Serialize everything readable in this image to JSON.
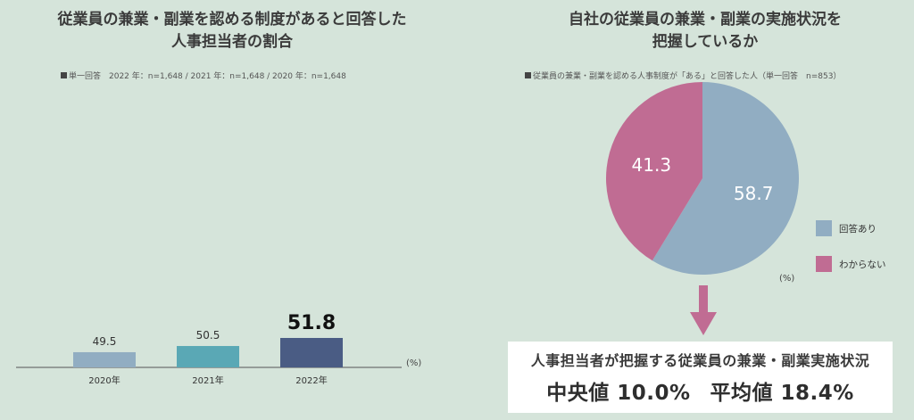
{
  "left": {
    "title_line1": "従業員の兼業・副業を認める制度があると回答した",
    "title_line2": "人事担当者の割合",
    "note": "単一回答　2022 年：n=1,648 / 2021 年：n=1,648 / 2020 年：n=1,648",
    "unit": "(%)"
  },
  "right": {
    "title_line1": "自社の従業員の兼業・副業の実施状況を",
    "title_line2": "把握しているか",
    "note": "従業員の兼業・副業を認める人事制度が「ある」と回答した人（単一回答　n=853）",
    "unit": "(%)",
    "legend": [
      "回答あり",
      "わからない"
    ]
  },
  "result": {
    "line1": "人事担当者が把握する従業員の兼業・副業実施状況",
    "median": "中央値 10.0%",
    "mean": "平均値 18.4%"
  },
  "chart_data": [
    {
      "type": "bar",
      "categories": [
        "2020年",
        "2021年",
        "2022年"
      ],
      "values": [
        49.5,
        50.5,
        51.8
      ],
      "labels": [
        "49.5",
        "50.5",
        "51.8"
      ],
      "title": "従業員の兼業・副業を認める制度があると回答した人事担当者の割合",
      "ylabel": "(%)",
      "colors": [
        "#91adc2",
        "#5aa8b5",
        "#4a5c84"
      ],
      "highlight_index": 2
    },
    {
      "type": "pie",
      "categories": [
        "回答あり",
        "わからない"
      ],
      "values": [
        58.7,
        41.3
      ],
      "labels": [
        "58.7",
        "41.3"
      ],
      "title": "自社の従業員の兼業・副業の実施状況を把握しているか",
      "colors": [
        "#91adc2",
        "#c06c93"
      ],
      "legend": "right"
    }
  ]
}
